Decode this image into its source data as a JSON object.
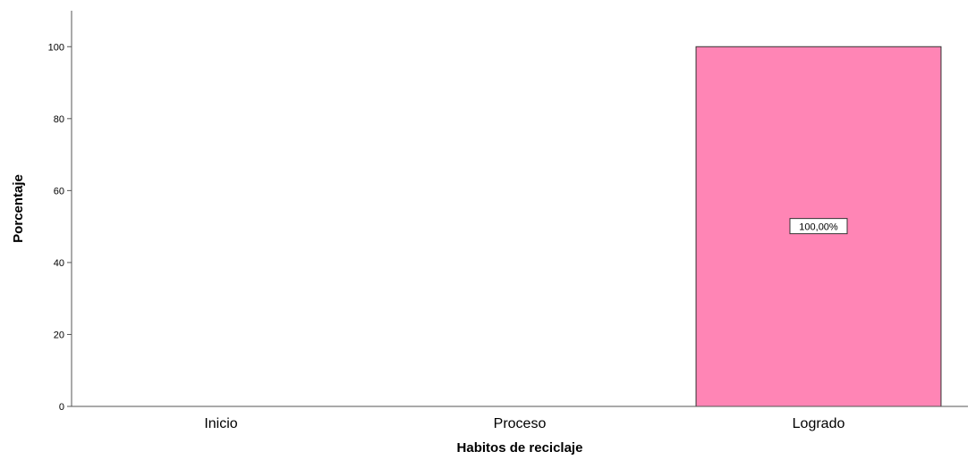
{
  "chart_data": {
    "type": "bar",
    "categories": [
      "Inicio",
      "Proceso",
      "Logrado"
    ],
    "values": [
      0,
      0,
      100
    ],
    "data_labels": [
      "",
      "",
      "100,00%"
    ],
    "xlabel": "Habitos de reciclaje",
    "ylabel": "Porcentaje",
    "ylim": [
      0,
      110
    ],
    "yticks": [
      0,
      20,
      40,
      60,
      80,
      100
    ],
    "bar_color": "#FF85B5",
    "bar_edge_color": "#333333",
    "grid": false
  }
}
